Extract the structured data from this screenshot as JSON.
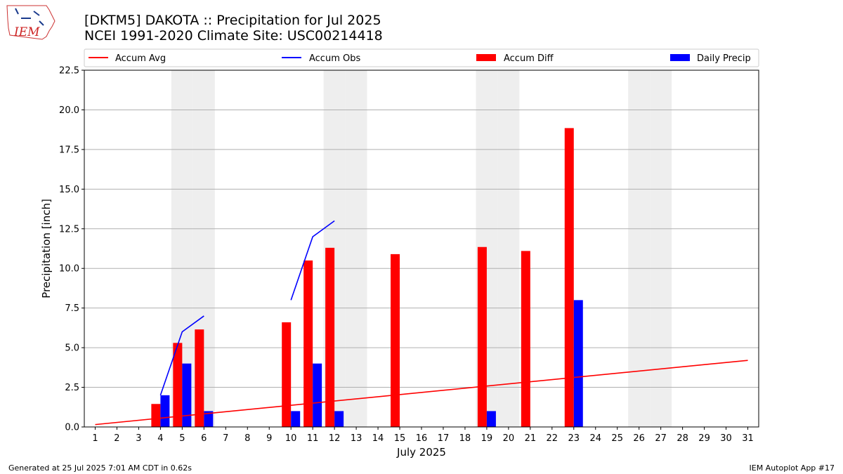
{
  "header": {
    "title_line1": "[DKTM5] DAKOTA :: Precipitation for Jul 2025",
    "title_line2": "NCEI 1991-2020 Climate Site: USC00214418",
    "logo_text": "IEM"
  },
  "footer": {
    "left": "Generated at 25 Jul 2025 7:01 AM CDT in 0.62s",
    "right": "IEM Autoplot App #17"
  },
  "colors": {
    "accum_avg": "#ff0000",
    "accum_obs": "#0000ff",
    "accum_diff": "#ff0000",
    "daily_precip": "#0000ff",
    "weekend_shade": "#eeeeee",
    "grid": "#b0b0b0"
  },
  "chart_data": {
    "type": "bar",
    "xlabel": "July 2025",
    "ylabel": "Precipitation [inch]",
    "ylim": [
      0,
      22.5
    ],
    "xlim": [
      0.5,
      31.5
    ],
    "yticks": [
      "0.0",
      "2.5",
      "5.0",
      "7.5",
      "10.0",
      "12.5",
      "15.0",
      "17.5",
      "20.0",
      "22.5"
    ],
    "xticks": [
      "1",
      "2",
      "3",
      "4",
      "5",
      "6",
      "7",
      "8",
      "9",
      "10",
      "11",
      "12",
      "13",
      "14",
      "15",
      "16",
      "17",
      "18",
      "19",
      "20",
      "21",
      "22",
      "23",
      "24",
      "25",
      "26",
      "27",
      "28",
      "29",
      "30",
      "31"
    ],
    "grid": "horizontal",
    "legend_position": "top",
    "legend": [
      "Accum Avg",
      "Accum Obs",
      "Accum Diff",
      "Daily Precip"
    ],
    "weekend_days": [
      5,
      6,
      12,
      13,
      19,
      20,
      26,
      27
    ],
    "accum_avg": {
      "name": "Accum Avg",
      "x": [
        1,
        31
      ],
      "y": [
        0.15,
        4.2
      ]
    },
    "accum_obs": {
      "name": "Accum Obs",
      "segments": [
        {
          "x": [
            4,
            5,
            6
          ],
          "y": [
            2.0,
            6.0,
            7.0
          ]
        },
        {
          "x": [
            10,
            11,
            12
          ],
          "y": [
            8.0,
            12.0,
            13.0
          ]
        }
      ]
    },
    "accum_diff": {
      "name": "Accum Diff",
      "days": [
        4,
        5,
        6,
        10,
        11,
        12,
        15,
        19,
        21,
        23
      ],
      "values": [
        1.45,
        5.3,
        6.15,
        6.6,
        10.5,
        11.3,
        10.9,
        11.35,
        11.1,
        18.85
      ]
    },
    "daily_precip": {
      "name": "Daily Precip",
      "days": [
        4,
        5,
        6,
        10,
        11,
        12,
        19,
        23
      ],
      "values": [
        2.0,
        4.0,
        1.0,
        1.0,
        4.0,
        1.0,
        1.0,
        8.0
      ]
    }
  }
}
